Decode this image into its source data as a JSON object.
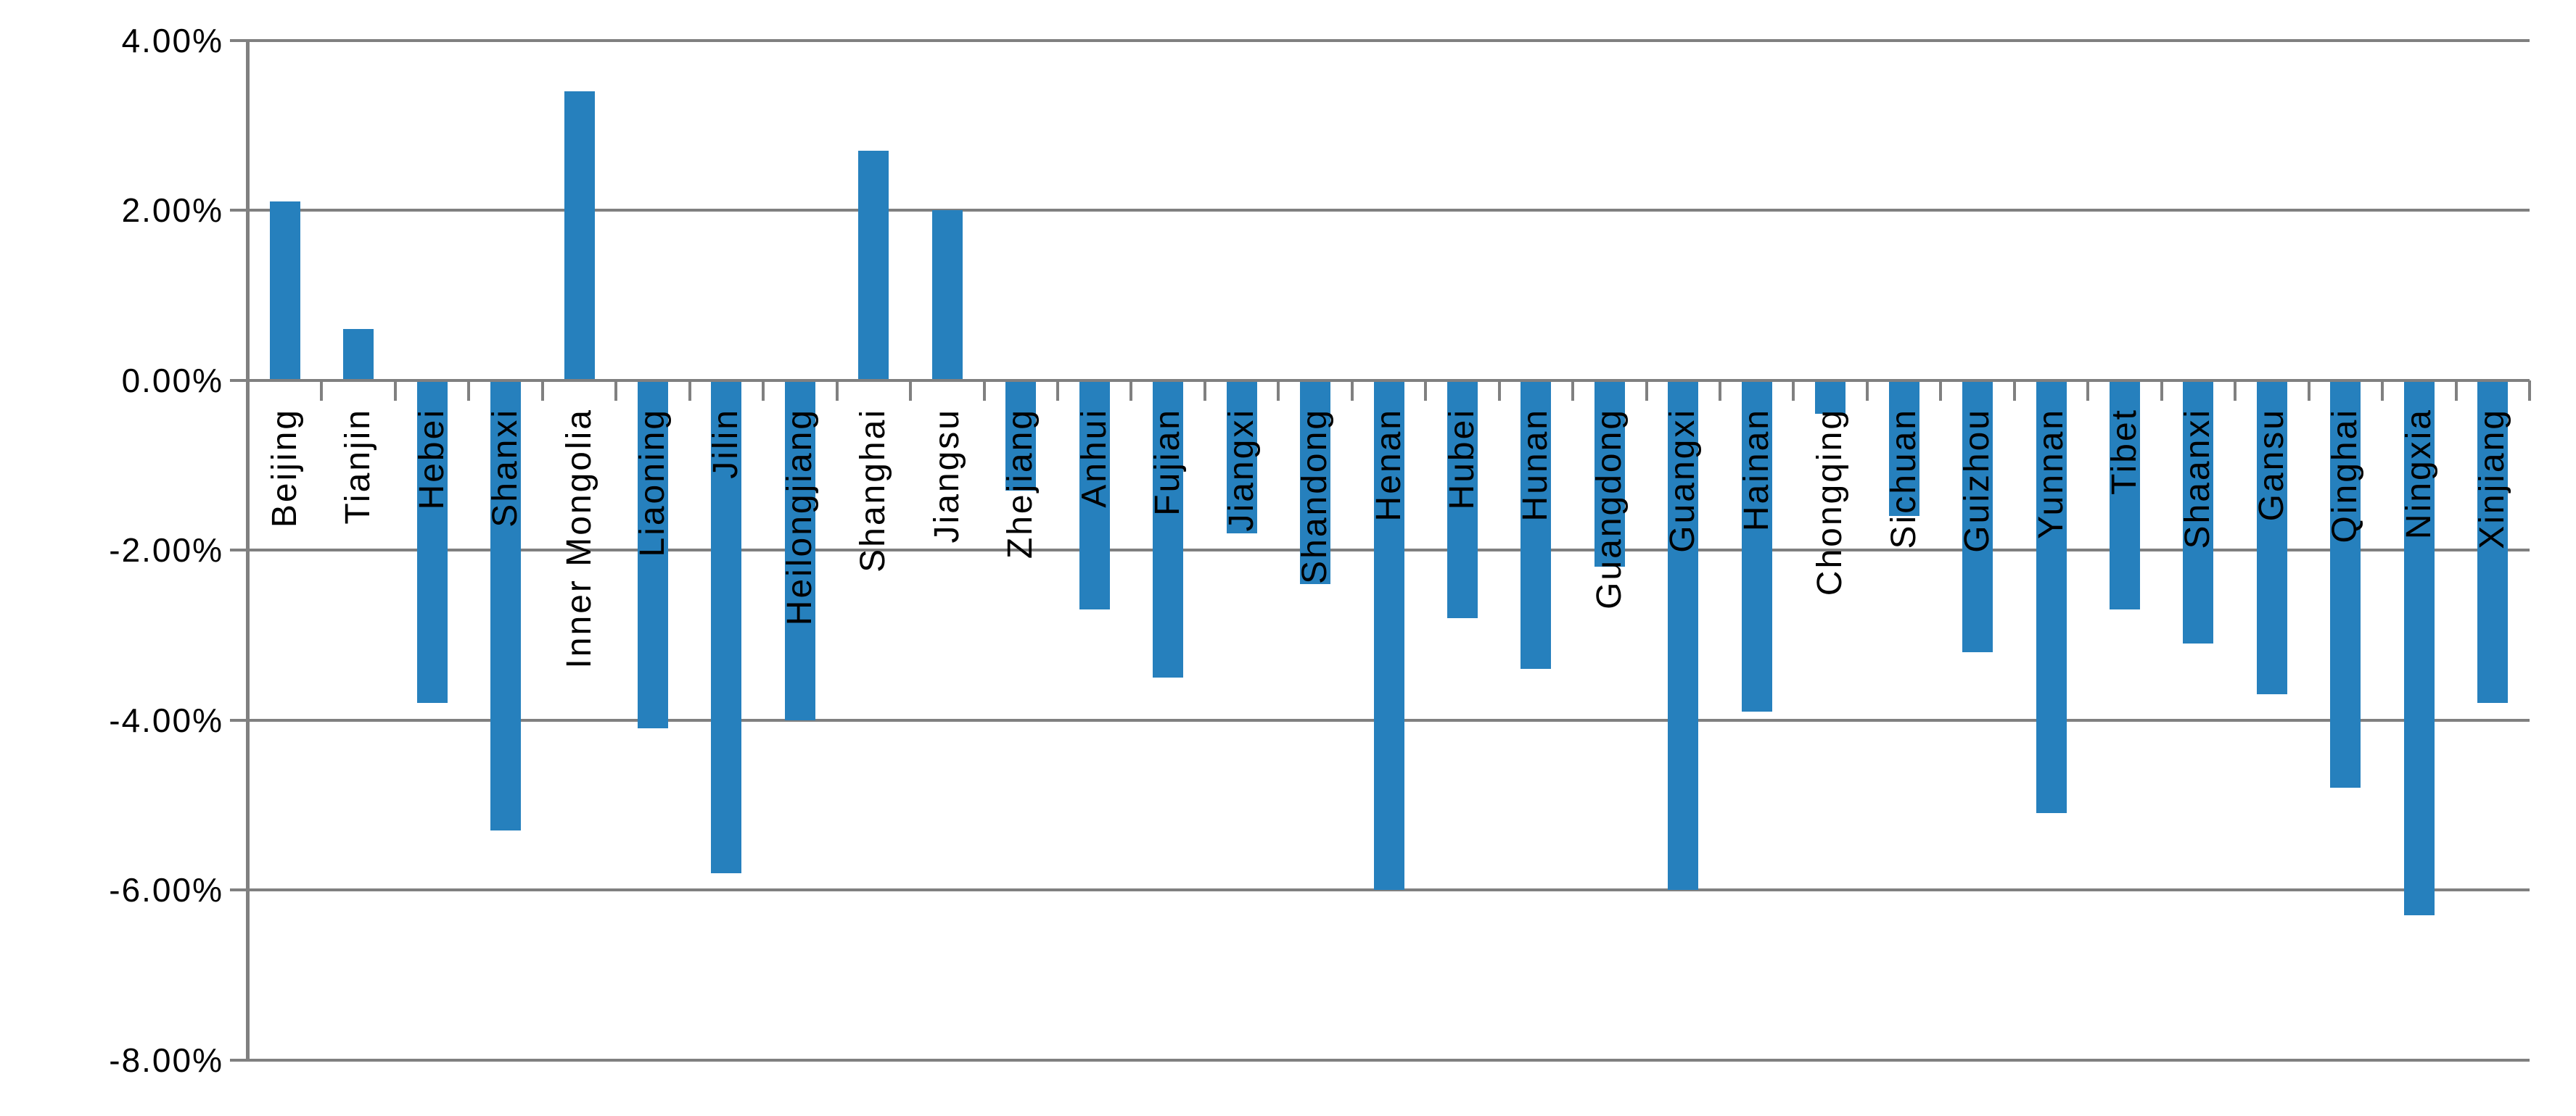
{
  "chart_data": {
    "type": "bar",
    "title": "",
    "xlabel": "",
    "ylabel": "",
    "unit": "percent",
    "categories": [
      "Beijing",
      "Tianjin",
      "Hebei",
      "Shanxi",
      "Inner Mongolia",
      "Liaoning",
      "Jilin",
      "Heilongjiang",
      "Shanghai",
      "Jiangsu",
      "Zhejiang",
      "Anhui",
      "Fujian",
      "Jiangxi",
      "Shandong",
      "Henan",
      "Hubei",
      "Hunan",
      "Guangdong",
      "Guangxi",
      "Hainan",
      "Chongqing",
      "Sichuan",
      "Guizhou",
      "Yunnan",
      "Tibet",
      "Shaanxi",
      "Gansu",
      "Qinghai",
      "Ningxia",
      "Xinjiang"
    ],
    "values": [
      2.1,
      0.6,
      -3.8,
      -5.3,
      3.4,
      -4.1,
      -5.8,
      -4.0,
      2.7,
      2.0,
      -1.3,
      -2.7,
      -3.5,
      -1.8,
      -2.4,
      -6.0,
      -2.8,
      -3.4,
      -2.2,
      -6.0,
      -3.9,
      -0.4,
      -1.6,
      -3.2,
      -5.1,
      -2.7,
      -3.1,
      -3.7,
      -4.8,
      -6.3,
      -3.8
    ],
    "ylim": [
      -8,
      4
    ],
    "y_ticks": [
      4,
      2,
      0,
      -2,
      -4,
      -6,
      -8
    ],
    "y_tick_labels": [
      "4.00%",
      "2.00%",
      "0.00%",
      "-2.00%",
      "-4.00%",
      "-6.00%",
      "-8.00%"
    ],
    "grid": true,
    "legend": "none",
    "x_label_rotation_deg": 90,
    "colors": {
      "bar": "#2680BD",
      "grid": "#808080",
      "axis": "#808080",
      "text": "#000000",
      "background": "#FFFFFF"
    }
  }
}
